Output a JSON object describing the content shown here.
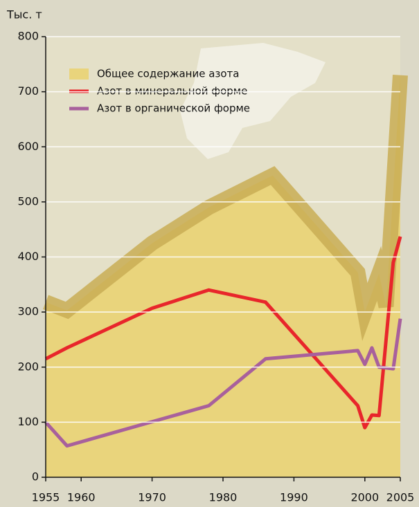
{
  "chart_data": {
    "type": "line",
    "y_axis_label": "Тыс. т",
    "ylim": [
      0,
      800
    ],
    "yticks": [
      0,
      100,
      200,
      300,
      400,
      500,
      600,
      700,
      800
    ],
    "xlim": [
      1955,
      2005
    ],
    "xticks": [
      1955,
      1960,
      1970,
      1980,
      1990,
      2000,
      2005
    ],
    "grid": true,
    "series": [
      {
        "name": "Общее содержание азота",
        "kind": "area",
        "color": "#e9d47c",
        "edge_color": "#c9ad55",
        "x": [
          1955,
          1958,
          1970,
          1978,
          1987,
          1999,
          2000,
          2002,
          2003,
          2005
        ],
        "values": [
          318,
          303,
          425,
          490,
          548,
          372,
          300,
          370,
          310,
          730
        ]
      },
      {
        "name": "Азот в минеральной форме",
        "kind": "line",
        "color": "#e8262b",
        "x": [
          1955,
          1958,
          1970,
          1978,
          1986,
          1999,
          2000,
          2001,
          2002,
          2004,
          2005
        ],
        "values": [
          215,
          235,
          307,
          340,
          318,
          130,
          90,
          113,
          112,
          390,
          437
        ]
      },
      {
        "name": "Азот в органической форме",
        "kind": "line",
        "color": "#a8609c",
        "x": [
          1955,
          1958,
          1978,
          1986,
          1999,
          2000,
          2001,
          2002,
          2004,
          2005
        ],
        "values": [
          100,
          57,
          130,
          215,
          230,
          205,
          235,
          200,
          197,
          288
        ]
      }
    ]
  }
}
